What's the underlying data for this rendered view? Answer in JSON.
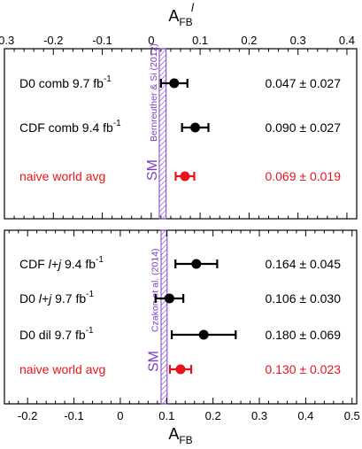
{
  "chart_data": [
    {
      "type": "scatter",
      "panel": "top",
      "axis_title": "A",
      "axis_title_sup": "l",
      "axis_title_sub": "FB",
      "axis_position": "top",
      "xlim": [
        -0.3,
        0.42
      ],
      "ticks": [
        "-0.3",
        "-0.2",
        "-0.1",
        "0",
        "0.1",
        "0.2",
        "0.3",
        "0.4"
      ],
      "tick_values": [
        -0.3,
        -0.2,
        -0.1,
        0,
        0.1,
        0.2,
        0.3,
        0.4
      ],
      "sm_band": {
        "label": "SM",
        "citation": "Bernreuther & Si (2012)",
        "center": 0.0235,
        "low": 0.0165,
        "high": 0.0305
      },
      "points": [
        {
          "label_parts": [
            "D0 comb 9.7 fb",
            "-1"
          ],
          "value_text": "0.047 ± 0.027",
          "value": 0.047,
          "error": 0.027,
          "color": "#000000"
        },
        {
          "label_parts": [
            "CDF comb 9.4 fb",
            "-1"
          ],
          "value_text": "0.090 ± 0.027",
          "value": 0.09,
          "error": 0.027,
          "color": "#000000"
        },
        {
          "label_parts": [
            "naive world avg"
          ],
          "value_text": "0.069 ± 0.019",
          "value": 0.069,
          "error": 0.019,
          "color": "#e8141b"
        }
      ]
    },
    {
      "type": "scatter",
      "panel": "bottom",
      "axis_title": "A",
      "axis_title_sub": "FB",
      "axis_position": "bottom",
      "xlim": [
        -0.25,
        0.51
      ],
      "ticks": [
        "-0.2",
        "-0.1",
        "0",
        "0.1",
        "0.2",
        "0.3",
        "0.4",
        "0.5"
      ],
      "tick_values": [
        -0.2,
        -0.1,
        0,
        0.1,
        0.2,
        0.3,
        0.4,
        0.5
      ],
      "sm_band": {
        "label": "SM",
        "citation": "Czakon et al. (2014)",
        "center": 0.095,
        "low": 0.088,
        "high": 0.101
      },
      "points": [
        {
          "label_parts": [
            "CDF ",
            "l+j",
            " 9.4 fb",
            "-1"
          ],
          "value_text": "0.164 ± 0.045",
          "value": 0.164,
          "error": 0.045,
          "color": "#000000"
        },
        {
          "label_parts": [
            "D0 ",
            "l+j",
            " 9.7 fb",
            "-1"
          ],
          "value_text": "0.106 ± 0.030",
          "value": 0.106,
          "error": 0.03,
          "color": "#000000"
        },
        {
          "label_parts": [
            "D0 dil 9.7 fb",
            "-1"
          ],
          "value_text": "0.180 ± 0.069",
          "value": 0.18,
          "error": 0.069,
          "color": "#000000"
        },
        {
          "label_parts": [
            "naive world avg"
          ],
          "value_text": "0.130 ± 0.023",
          "value": 0.13,
          "error": 0.023,
          "color": "#e8141b"
        }
      ]
    }
  ],
  "colors": {
    "sm_band": "#7b3fc4",
    "red": "#e8141b",
    "black": "#000000"
  }
}
